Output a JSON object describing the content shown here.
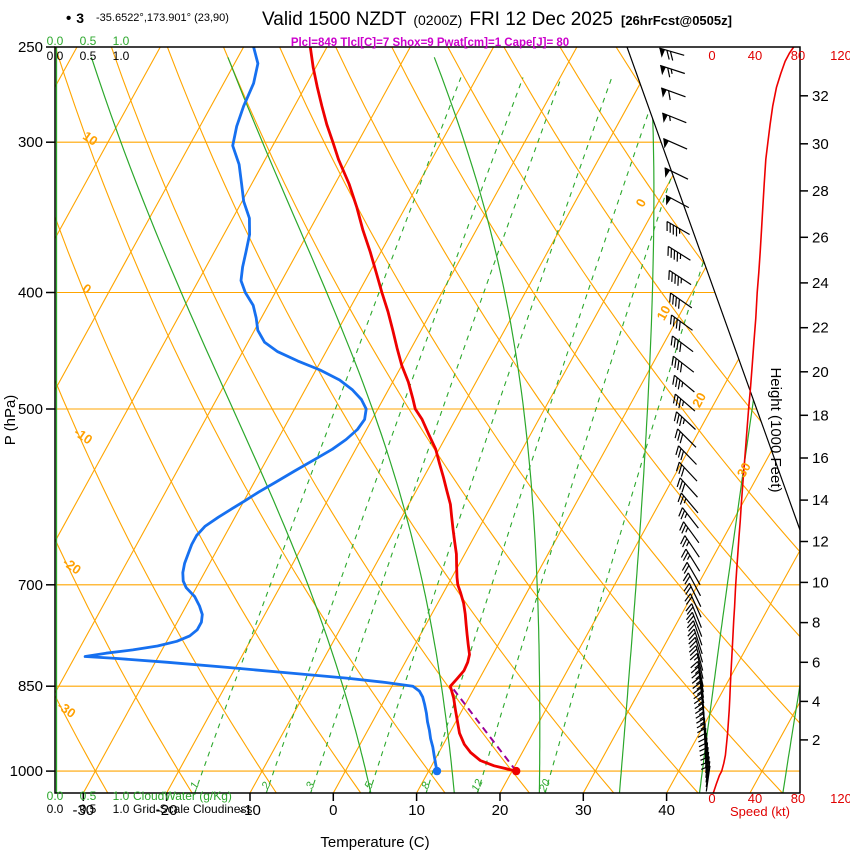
{
  "header": {
    "bullet": "•",
    "station": "3",
    "coords": "-35.6522°,173.901° (23,90)",
    "title_main": "Valid 1500 NZDT",
    "title_zulu": "(0200Z)",
    "title_date": "FRI 12 Dec 2025",
    "title_fcst": "[26hrFcst@0505z]",
    "indices": "Plcl=849 Tlcl[C]=7 Shox=9 Pwat[cm]=1 Cape[J]= 80"
  },
  "axes": {
    "pressure_label": "P (hPa)",
    "pressure_ticks": [
      250,
      300,
      400,
      500,
      700,
      850,
      1000
    ],
    "temp_label": "Temperature (C)",
    "temp_ticks": [
      -30,
      -20,
      -10,
      0,
      10,
      20,
      30,
      40
    ],
    "height_label": "Height (1000 Feet)",
    "height_ticks": [
      2,
      4,
      6,
      8,
      10,
      12,
      14,
      16,
      18,
      20,
      22,
      24,
      26,
      28,
      30,
      32
    ],
    "speed_label": "Speed (kt)",
    "speed_ticks": [
      0,
      40,
      80,
      120
    ],
    "cloud_scale": [
      "0.0",
      "0.5",
      "1.0"
    ],
    "cloudwater_label": "CloudWater (g/Kg)",
    "cloudiness_label": "Grid-Scale Cloudiness"
  },
  "colors": {
    "grid_orange": "#FFA500",
    "green": "#2CA82C",
    "temperature": "#EE0000",
    "dewpoint": "#1670F0",
    "parcel": "#990099",
    "speed_axis": "#E00000",
    "indices": "#CC00CC",
    "barbs": "#000000"
  },
  "chart_data": {
    "type": "line",
    "subtype": "skew-t-log-p-sounding",
    "title": "Valid 1500 NZDT (0200Z) FRI 12 Dec 2025 [26hrFcst@0505z]",
    "xlabel": "Temperature (C)",
    "ylabel": "P (hPa)",
    "pressure_range_hPa": [
      250,
      1045
    ],
    "temp_range_C": [
      -30,
      40
    ],
    "isotherm_labels_C": [
      0,
      10,
      20,
      30
    ],
    "dry_adiabat_labels_C": [
      10,
      0,
      -10,
      -20,
      -30
    ],
    "mixing_ratio_lines_gkg": [
      1,
      2,
      3,
      5,
      8,
      12,
      20
    ],
    "moist_adiabat_starts_C": [
      4.6,
      14.6,
      24.8,
      34.4,
      44,
      54
    ],
    "temperature_profile": [
      [
        1000,
        20.5
      ],
      [
        990,
        17.5
      ],
      [
        980,
        15.5
      ],
      [
        965,
        13.8
      ],
      [
        950,
        12.5
      ],
      [
        930,
        11.2
      ],
      [
        910,
        10.2
      ],
      [
        890,
        9.2
      ],
      [
        870,
        8.2
      ],
      [
        850,
        7.0
      ],
      [
        838,
        7.3
      ],
      [
        825,
        7.6
      ],
      [
        812,
        7.5
      ],
      [
        800,
        7.2
      ],
      [
        785,
        6.4
      ],
      [
        770,
        5.6
      ],
      [
        755,
        4.8
      ],
      [
        740,
        4.0
      ],
      [
        725,
        3.1
      ],
      [
        710,
        2.0
      ],
      [
        700,
        1.2
      ],
      [
        690,
        0.6
      ],
      [
        675,
        -0.2
      ],
      [
        660,
        -1.0
      ],
      [
        645,
        -2.0
      ],
      [
        630,
        -3.0
      ],
      [
        615,
        -4.0
      ],
      [
        600,
        -5.0
      ],
      [
        585,
        -6.3
      ],
      [
        570,
        -7.6
      ],
      [
        555,
        -9.0
      ],
      [
        540,
        -10.4
      ],
      [
        525,
        -12.2
      ],
      [
        510,
        -14.0
      ],
      [
        500,
        -15.5
      ],
      [
        490,
        -16.5
      ],
      [
        475,
        -18.1
      ],
      [
        460,
        -20.0
      ],
      [
        445,
        -21.7
      ],
      [
        430,
        -23.4
      ],
      [
        415,
        -25.2
      ],
      [
        400,
        -27.2
      ],
      [
        385,
        -29.2
      ],
      [
        370,
        -31.3
      ],
      [
        355,
        -33.6
      ],
      [
        340,
        -35.8
      ],
      [
        325,
        -38.3
      ],
      [
        310,
        -41.2
      ],
      [
        300,
        -43.0
      ],
      [
        290,
        -44.9
      ],
      [
        280,
        -46.7
      ],
      [
        270,
        -48.5
      ],
      [
        260,
        -50.3
      ],
      [
        250,
        -52.0
      ]
    ],
    "dewpoint_profile": [
      [
        1000,
        11
      ],
      [
        985,
        10.3
      ],
      [
        970,
        9.6
      ],
      [
        955,
        8.9
      ],
      [
        940,
        8.1
      ],
      [
        925,
        7.4
      ],
      [
        910,
        6.6
      ],
      [
        895,
        5.9
      ],
      [
        880,
        5.1
      ],
      [
        868,
        4.4
      ],
      [
        858,
        3.6
      ],
      [
        850,
        2.5
      ],
      [
        844,
        -1
      ],
      [
        837,
        -6
      ],
      [
        829,
        -13
      ],
      [
        820,
        -21
      ],
      [
        812,
        -28.5
      ],
      [
        806,
        -35
      ],
      [
        803,
        -38.8
      ],
      [
        798,
        -36.5
      ],
      [
        793,
        -33.5
      ],
      [
        787,
        -30.8
      ],
      [
        780,
        -28.8
      ],
      [
        772,
        -27.6
      ],
      [
        763,
        -27.1
      ],
      [
        752,
        -27.1
      ],
      [
        741,
        -27.5
      ],
      [
        729,
        -28.4
      ],
      [
        716,
        -29.6
      ],
      [
        704,
        -31.2
      ],
      [
        695,
        -32.0
      ],
      [
        684,
        -32.6
      ],
      [
        672,
        -33.0
      ],
      [
        660,
        -33.2
      ],
      [
        648,
        -33.4
      ],
      [
        637,
        -33.4
      ],
      [
        626,
        -33.0
      ],
      [
        615,
        -32.0
      ],
      [
        605,
        -30.9
      ],
      [
        596,
        -29.9
      ],
      [
        586,
        -28.8
      ],
      [
        575,
        -27.4
      ],
      [
        563,
        -25.9
      ],
      [
        551,
        -24.3
      ],
      [
        540,
        -22.8
      ],
      [
        530,
        -21.8
      ],
      [
        520,
        -21.1
      ],
      [
        510,
        -20.9
      ],
      [
        500,
        -21.4
      ],
      [
        491,
        -22.6
      ],
      [
        482,
        -24.3
      ],
      [
        473,
        -26.5
      ],
      [
        464,
        -29.5
      ],
      [
        456,
        -32.8
      ],
      [
        448,
        -35.8
      ],
      [
        440,
        -38.0
      ],
      [
        430,
        -39.6
      ],
      [
        420,
        -40.6
      ],
      [
        410,
        -41.8
      ],
      [
        400,
        -43.6
      ],
      [
        391,
        -44.9
      ],
      [
        381,
        -45.6
      ],
      [
        370,
        -46.2
      ],
      [
        358,
        -46.9
      ],
      [
        347,
        -48.0
      ],
      [
        336,
        -49.8
      ],
      [
        325,
        -51.2
      ],
      [
        313,
        -52.8
      ],
      [
        302,
        -54.8
      ],
      [
        291,
        -55.6
      ],
      [
        280,
        -56.1
      ],
      [
        268,
        -56.4
      ],
      [
        258,
        -57.2
      ],
      [
        250,
        -58.8
      ]
    ],
    "parcel_path": [
      [
        1000,
        20.5
      ],
      [
        849,
        7.0
      ]
    ],
    "parcel_lcl_hPa": 849,
    "parcel_t_lcl_C": 7,
    "surface_temp_dot": [
      1000,
      20.5
    ],
    "surface_dewpoint_dot": [
      1000,
      11
    ],
    "wind_speed_profile_kt": [
      [
        1044,
        1
      ],
      [
        1025,
        4
      ],
      [
        1008,
        7
      ],
      [
        1000,
        9
      ],
      [
        985,
        11
      ],
      [
        970,
        12.5
      ],
      [
        950,
        13.5
      ],
      [
        930,
        14.5
      ],
      [
        910,
        15.3
      ],
      [
        890,
        16
      ],
      [
        870,
        16.6
      ],
      [
        850,
        17
      ],
      [
        830,
        17.6
      ],
      [
        810,
        18.2
      ],
      [
        790,
        18.9
      ],
      [
        770,
        19.5
      ],
      [
        750,
        20.2
      ],
      [
        730,
        21
      ],
      [
        710,
        21.7
      ],
      [
        700,
        22
      ],
      [
        680,
        23
      ],
      [
        660,
        24
      ],
      [
        640,
        25
      ],
      [
        620,
        26.2
      ],
      [
        600,
        27.3
      ],
      [
        580,
        28.5
      ],
      [
        560,
        29.8
      ],
      [
        540,
        31.2
      ],
      [
        520,
        32.6
      ],
      [
        500,
        34
      ],
      [
        480,
        35.8
      ],
      [
        460,
        37.4
      ],
      [
        440,
        39
      ],
      [
        420,
        40.7
      ],
      [
        400,
        42
      ],
      [
        385,
        43.5
      ],
      [
        370,
        44.8
      ],
      [
        355,
        46
      ],
      [
        340,
        47.3
      ],
      [
        325,
        48.6
      ],
      [
        310,
        50
      ],
      [
        300,
        52
      ],
      [
        290,
        54
      ],
      [
        280,
        56.5
      ],
      [
        270,
        60
      ],
      [
        263,
        64
      ],
      [
        257,
        68
      ],
      [
        253,
        72
      ],
      [
        250,
        76
      ]
    ],
    "wind_barbs": [
      [
        1040,
        8,
        8
      ],
      [
        1031,
        8,
        9
      ],
      [
        1022,
        7,
        10
      ],
      [
        1013,
        6,
        10
      ],
      [
        1004,
        5,
        11
      ],
      [
        995,
        4,
        11
      ],
      [
        986,
        3,
        12
      ],
      [
        977,
        2,
        12
      ],
      [
        968,
        1,
        12
      ],
      [
        959,
        0,
        13
      ],
      [
        950,
        359,
        13
      ],
      [
        941,
        358,
        14
      ],
      [
        932,
        357,
        14
      ],
      [
        923,
        356,
        14
      ],
      [
        914,
        355,
        15
      ],
      [
        905,
        354,
        15
      ],
      [
        896,
        353,
        15
      ],
      [
        887,
        352,
        16
      ],
      [
        878,
        351,
        16
      ],
      [
        869,
        350,
        16
      ],
      [
        860,
        349,
        17
      ],
      [
        851,
        348,
        17
      ],
      [
        838,
        347,
        17
      ],
      [
        825,
        345,
        18
      ],
      [
        812,
        344,
        18
      ],
      [
        799,
        342,
        19
      ],
      [
        786,
        341,
        19
      ],
      [
        773,
        339,
        20
      ],
      [
        760,
        338,
        20
      ],
      [
        745,
        336,
        21
      ],
      [
        730,
        334,
        21
      ],
      [
        715,
        332,
        22
      ],
      [
        700,
        330,
        22
      ],
      [
        682,
        328,
        23
      ],
      [
        664,
        326,
        24
      ],
      [
        646,
        324,
        25
      ],
      [
        628,
        322,
        26
      ],
      [
        610,
        320,
        27
      ],
      [
        592,
        318,
        28
      ],
      [
        574,
        317,
        29
      ],
      [
        556,
        316,
        31
      ],
      [
        538,
        315,
        32
      ],
      [
        520,
        313,
        33
      ],
      [
        502,
        311,
        34
      ],
      [
        484,
        310,
        36
      ],
      [
        466,
        308,
        38
      ],
      [
        448,
        307,
        39
      ],
      [
        430,
        306,
        41
      ],
      [
        412,
        305,
        42
      ],
      [
        394,
        303,
        44
      ],
      [
        376,
        302,
        46
      ],
      [
        358,
        300,
        47
      ],
      [
        340,
        298,
        48
      ],
      [
        322,
        296,
        50
      ],
      [
        304,
        294,
        52
      ],
      [
        289,
        292,
        55
      ],
      [
        275,
        290,
        59
      ],
      [
        263,
        288,
        65
      ],
      [
        254,
        286,
        72
      ]
    ]
  }
}
